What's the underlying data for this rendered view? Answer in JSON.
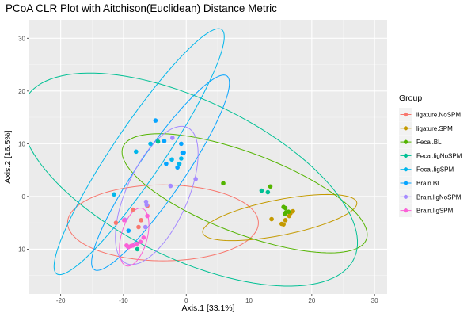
{
  "chart_data": {
    "type": "scatter",
    "title": "PCoA CLR Plot with Aitchison(Euclidean) Distance Metric",
    "xlabel": "Axis.1   [33.1%]",
    "ylabel": "Axis.2   [16.5%]",
    "xlim": [
      -25,
      32
    ],
    "ylim": [
      -18.5,
      33.5
    ],
    "xticks": [
      -20,
      -10,
      0,
      10,
      20,
      30
    ],
    "yticks": [
      -10,
      0,
      10,
      20,
      30
    ],
    "grid": true,
    "legend": {
      "title": "Group",
      "position": "right"
    },
    "series": [
      {
        "name": "ligature.NoSPM",
        "color": "#F8766D",
        "points": [
          [
            -11.2,
            -5
          ],
          [
            -8.5,
            -2.5
          ],
          [
            -7.2,
            -4.5
          ],
          [
            -6.2,
            -1.8
          ],
          [
            -7.6,
            -5.8
          ]
        ],
        "ellipse": {
          "center": [
            -3.7,
            -5
          ],
          "width": 30.4,
          "height": 14.4,
          "angle": 0
        }
      },
      {
        "name": "ligature.SPM",
        "color": "#C49A00",
        "points": [
          [
            13.6,
            -4.3
          ],
          [
            15.2,
            -5.2
          ],
          [
            15.5,
            -5.3
          ],
          [
            15.8,
            -4.5
          ],
          [
            16.4,
            -3.7
          ],
          [
            16.6,
            -3.2
          ],
          [
            17,
            -2.8
          ]
        ],
        "ellipse": {
          "center": [
            14.9,
            -4
          ],
          "width": 25.2,
          "height": 6.7,
          "angle": 13.4
        }
      },
      {
        "name": "Fecal.BL",
        "color": "#53B400",
        "points": [
          [
            5.9,
            2.5
          ],
          [
            13.4,
            1.9
          ],
          [
            15.5,
            -2
          ],
          [
            15.8,
            -2.2
          ],
          [
            15.7,
            -3.3
          ],
          [
            16.3,
            -2.9
          ],
          [
            15.9,
            -3
          ]
        ],
        "ellipse": {
          "center": [
            9.3,
            0.6
          ],
          "width": 42.6,
          "height": 14.9,
          "angle": -25.2
        }
      },
      {
        "name": "Fecal.ligNoSPM",
        "color": "#00C094",
        "points": [
          [
            -7.8,
            -10
          ],
          [
            -4.5,
            10.4
          ],
          [
            12,
            1.1
          ],
          [
            13,
            0.8
          ]
        ],
        "ellipse": {
          "center": [
            0.5,
            3.2
          ],
          "width": 60.6,
          "height": 28.8,
          "angle": -32.1
        }
      },
      {
        "name": "Fecal.ligSPM",
        "color": "#00B6EB",
        "points": [
          [
            -11.5,
            0.4
          ],
          [
            -8,
            8.5
          ],
          [
            -5.7,
            10
          ],
          [
            -2.3,
            7
          ],
          [
            -1.1,
            6.2
          ],
          [
            -0.8,
            7.2
          ]
        ],
        "ellipse": {
          "center": [
            -7.5,
            8.5
          ],
          "width": 53.3,
          "height": 8.5,
          "angle": 60.7
        }
      },
      {
        "name": "Brain.BL",
        "color": "#06A4FF",
        "points": [
          [
            -4.9,
            14.4
          ],
          [
            -3.5,
            10.5
          ],
          [
            -3.2,
            6.2
          ],
          [
            -1.4,
            5.5
          ],
          [
            -0.8,
            10
          ],
          [
            -0.6,
            8.3
          ],
          [
            -0.4,
            8.3
          ],
          [
            -9.2,
            -6.5
          ]
        ],
        "ellipse": {
          "center": [
            -4.1,
            4.5
          ],
          "width": 42.4,
          "height": 7.6,
          "angle": 60.4
        }
      },
      {
        "name": "Brain.ligNoSPM",
        "color": "#A58AFF",
        "points": [
          [
            -2.2,
            11.1
          ],
          [
            -2.5,
            2
          ],
          [
            1.5,
            3.3
          ],
          [
            -6.4,
            -1
          ],
          [
            -6.3,
            -1.6
          ],
          [
            -9.8,
            -4.4
          ],
          [
            -9.3,
            -9.5
          ],
          [
            -6.5,
            -5.8
          ]
        ],
        "ellipse": {
          "center": [
            -4.7,
            0.2
          ],
          "width": 27.6,
          "height": 10,
          "angle": 70.5
        }
      },
      {
        "name": "Brain.ligSPM",
        "color": "#FB61D7",
        "points": [
          [
            -9.5,
            -9.3
          ],
          [
            -9.2,
            -9.6
          ],
          [
            -8.8,
            -9.4
          ],
          [
            -8.5,
            -9.3
          ],
          [
            -7.9,
            -9
          ],
          [
            -7.3,
            -8.6
          ],
          [
            -6.8,
            -7.8
          ],
          [
            -9.9,
            -4.5
          ],
          [
            -6.2,
            -3.7
          ]
        ],
        "ellipse": {
          "center": [
            -8.3,
            -7.7
          ],
          "width": 11.2,
          "height": 4.2,
          "angle": 78.2
        }
      }
    ]
  }
}
